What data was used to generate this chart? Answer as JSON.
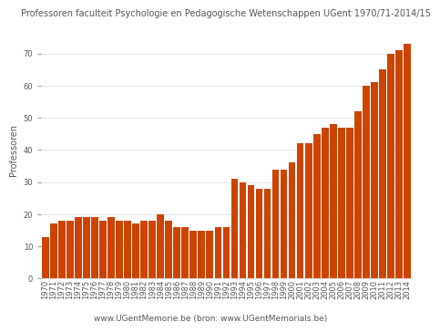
{
  "title": "Professoren faculteit Psychologie en Pedagogische Wetenschappen UGent 1970/71-2014/15",
  "ylabel": "Professoren",
  "footer": "www.UGentMemorie.be (bron: www.UGentMemorials.be)",
  "bar_color": "#CC4400",
  "background_color": "#ffffff",
  "categories": [
    "1970",
    "1971",
    "1972",
    "1973",
    "1974",
    "1975",
    "1976",
    "1977",
    "1978",
    "1979",
    "1980",
    "1981",
    "1982",
    "1983",
    "1984",
    "1985",
    "1986",
    "1987",
    "1988",
    "1989",
    "1990",
    "1991",
    "1992",
    "1993",
    "1994",
    "1995",
    "1996",
    "1997",
    "1998",
    "1999",
    "2000",
    "2001",
    "2002",
    "2003",
    "2004",
    "2005",
    "2006",
    "2007",
    "2008",
    "2009",
    "2010",
    "2011",
    "2012",
    "2013",
    "2014"
  ],
  "values": [
    13,
    17,
    18,
    18,
    19,
    19,
    19,
    18,
    19,
    18,
    18,
    17,
    18,
    18,
    20,
    18,
    16,
    16,
    15,
    15,
    15,
    16,
    16,
    31,
    30,
    29,
    28,
    28,
    34,
    34,
    36,
    42,
    42,
    45,
    47,
    48,
    47,
    47,
    52,
    60,
    61,
    65,
    70,
    71,
    73
  ],
  "ylim": [
    0,
    80
  ],
  "yticks": [
    0,
    10,
    20,
    30,
    40,
    50,
    60,
    70
  ],
  "title_fontsize": 7,
  "ylabel_fontsize": 7,
  "footer_fontsize": 6.5,
  "tick_fontsize": 6
}
